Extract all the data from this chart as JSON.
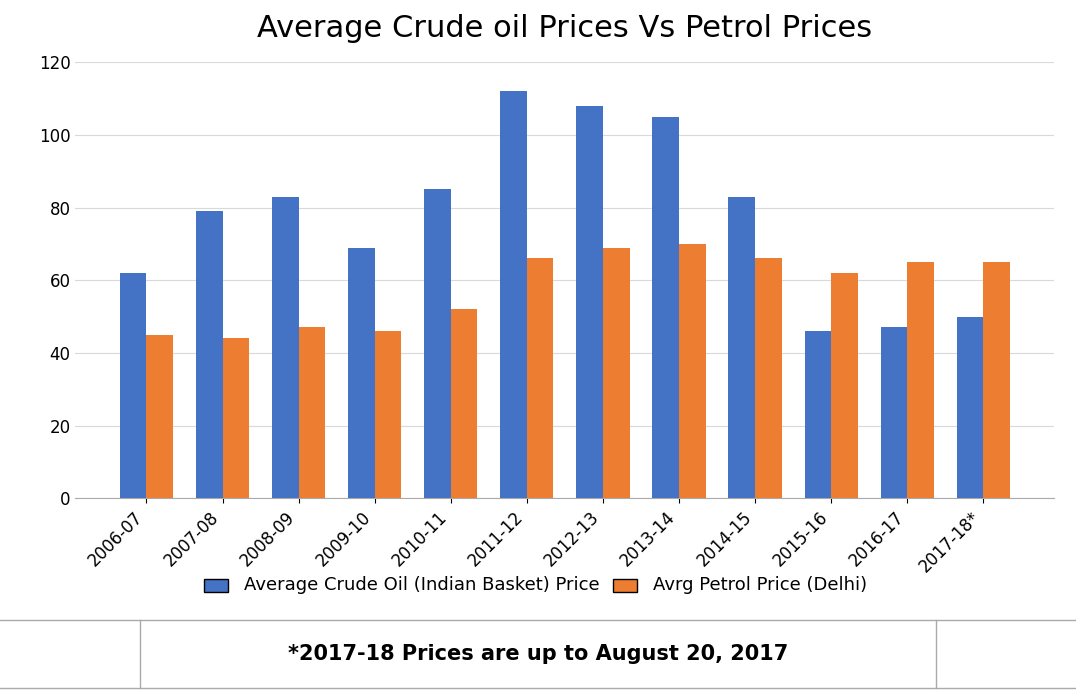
{
  "title": "Average Crude oil Prices Vs Petrol Prices",
  "categories": [
    "2006-07",
    "2007-08",
    "2008-09",
    "2009-10",
    "2010-11",
    "2011-12",
    "2012-13",
    "2013-14",
    "2014-15",
    "2015-16",
    "2016-17",
    "2017-18*"
  ],
  "crude_oil": [
    62,
    79,
    83,
    69,
    85,
    112,
    108,
    105,
    83,
    46,
    47,
    50
  ],
  "petrol": [
    45,
    44,
    47,
    46,
    52,
    66,
    69,
    70,
    66,
    62,
    65,
    65
  ],
  "crude_color": "#4472C4",
  "petrol_color": "#ED7D31",
  "ylim": [
    0,
    120
  ],
  "yticks": [
    0,
    20,
    40,
    60,
    80,
    100,
    120
  ],
  "legend_crude": "Average Crude Oil (Indian Basket) Price",
  "legend_petrol": "Avrg Petrol Price (Delhi)",
  "footnote": "*2017-18 Prices are up to August 20, 2017",
  "background_color": "#FFFFFF",
  "grid_color": "#D9D9D9",
  "title_fontsize": 22,
  "tick_fontsize": 12,
  "legend_fontsize": 13,
  "footnote_fontsize": 15
}
